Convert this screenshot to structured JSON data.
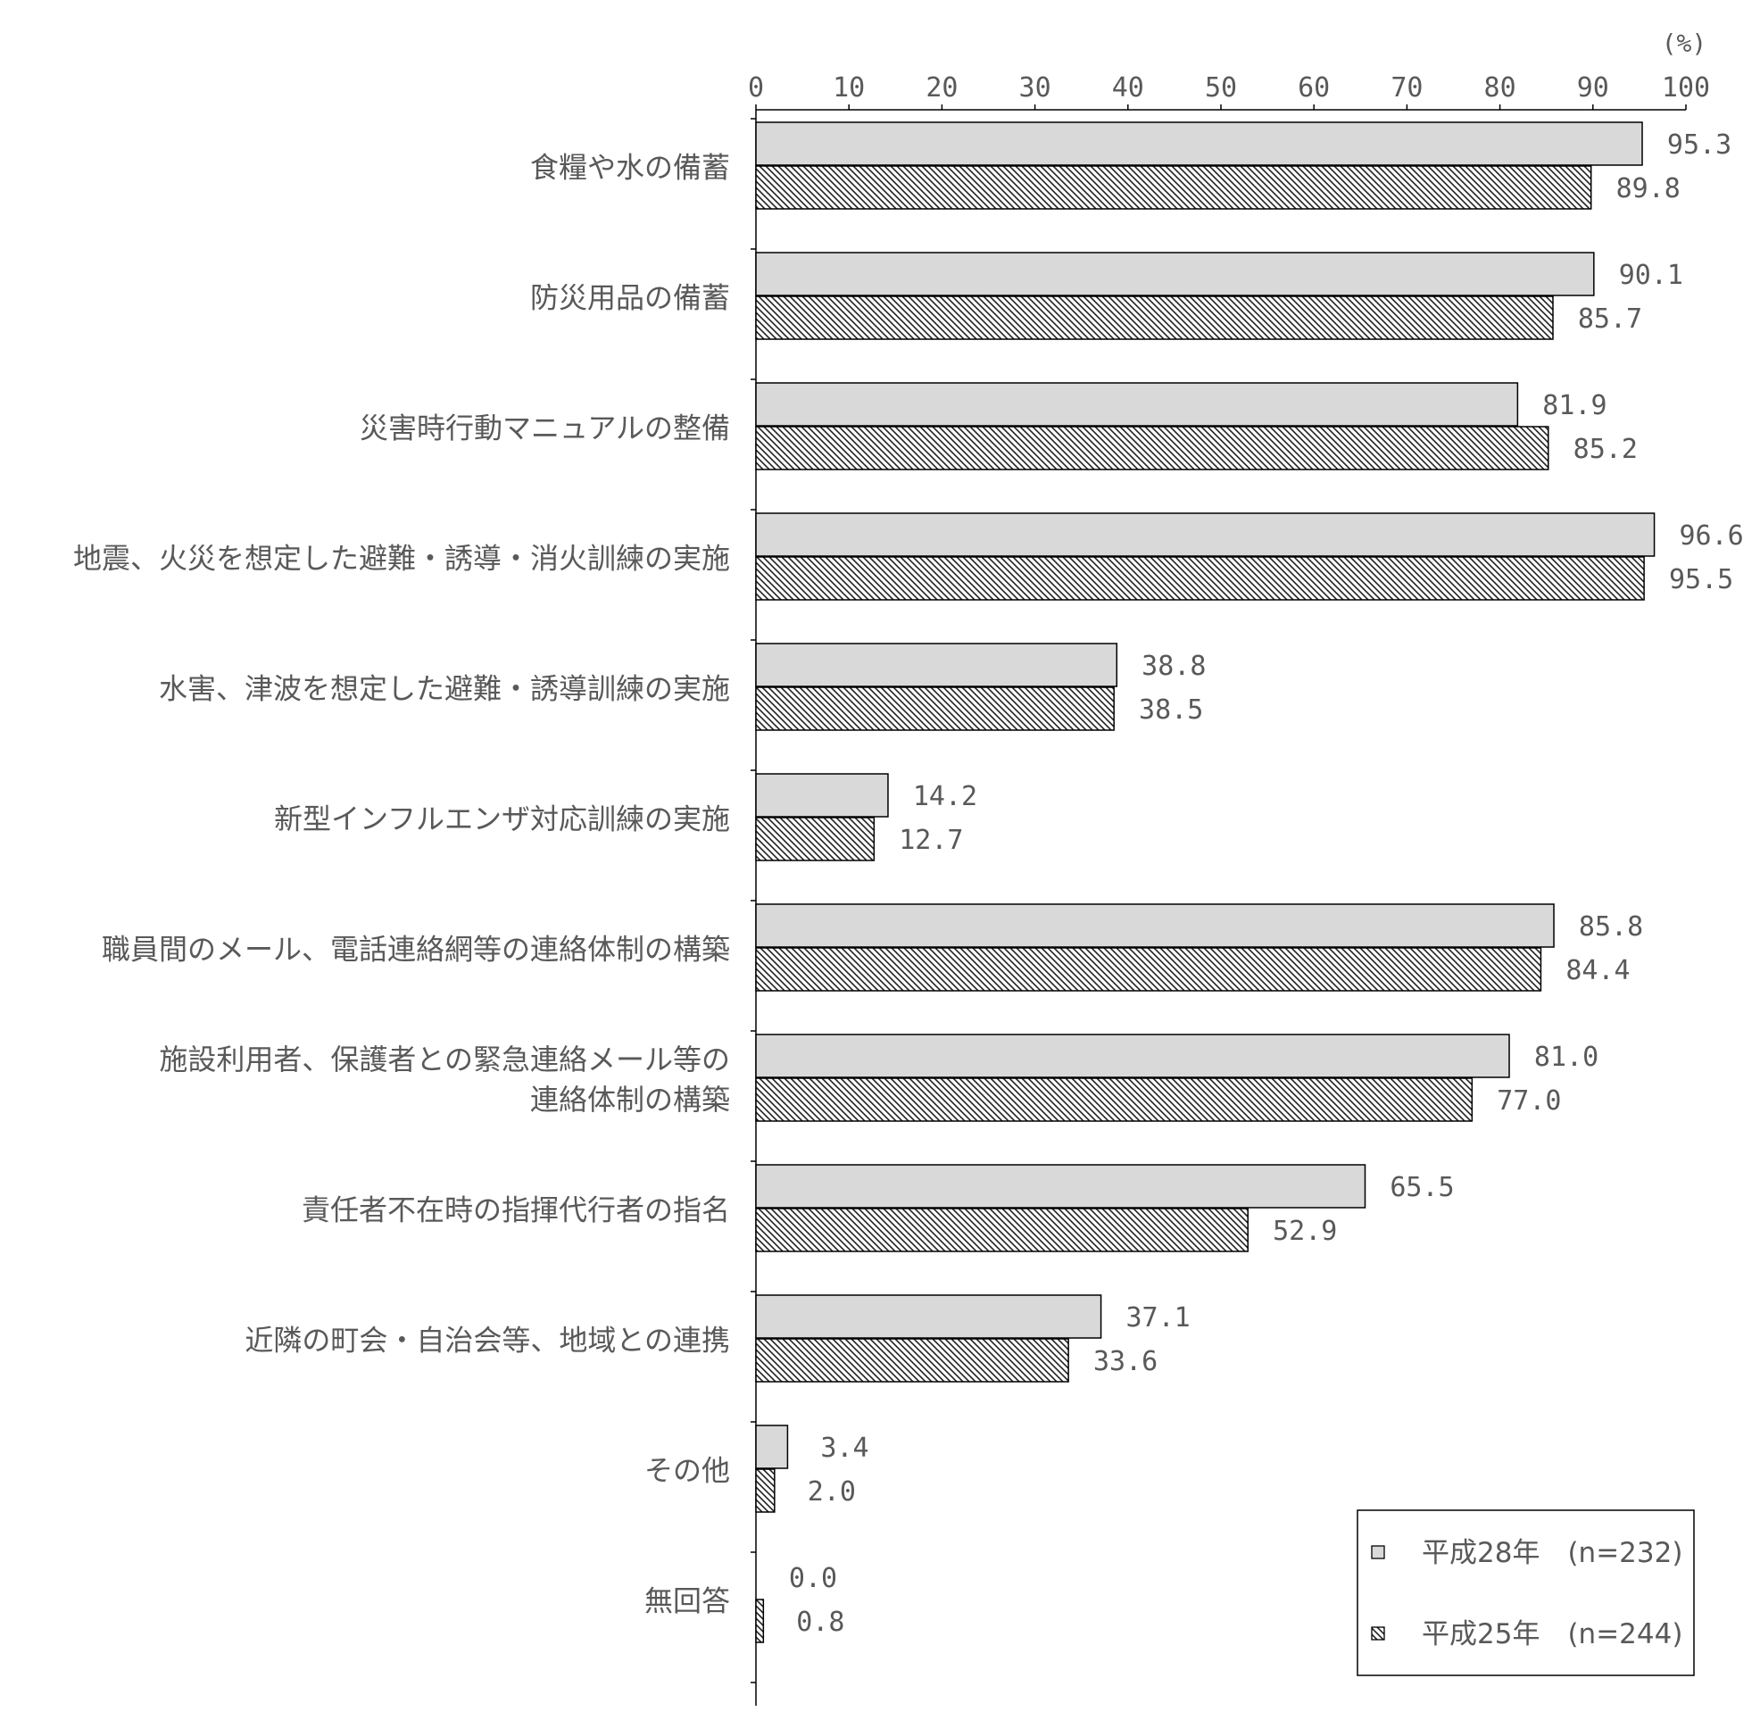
{
  "chart_data": {
    "type": "bar",
    "orientation": "horizontal",
    "unit": "(%)",
    "xlim": [
      0,
      100
    ],
    "xticks": [
      0,
      10,
      20,
      30,
      40,
      50,
      60,
      70,
      80,
      90,
      100
    ],
    "legend_position": "bottom-right",
    "categories": [
      [
        "食糧や水の備蓄"
      ],
      [
        "防災用品の備蓄"
      ],
      [
        "災害時行動マニュアルの整備"
      ],
      [
        "地震、火災を想定した避難・誘導・消火訓練の実施"
      ],
      [
        "水害、津波を想定した避難・誘導訓練の実施"
      ],
      [
        "新型インフルエンザ対応訓練の実施"
      ],
      [
        "職員間のメール、電話連絡網等の連絡体制の構築"
      ],
      [
        "施設利用者、保護者との緊急連絡メール等の",
        "連絡体制の構築"
      ],
      [
        "責任者不在時の指揮代行者の指名"
      ],
      [
        "近隣の町会・自治会等、地域との連携"
      ],
      [
        "その他"
      ],
      [
        "無回答"
      ]
    ],
    "series": [
      {
        "name": "平成28年　(n=232)",
        "fill": "solid",
        "color": "#d9d9d9",
        "values": [
          95.3,
          90.1,
          81.9,
          96.6,
          38.8,
          14.2,
          85.8,
          81.0,
          65.5,
          37.1,
          3.4,
          0.0
        ]
      },
      {
        "name": "平成25年　(n=244)",
        "fill": "hatch",
        "color": "#ffffff",
        "values": [
          89.8,
          85.7,
          85.2,
          95.5,
          38.5,
          12.7,
          84.4,
          77.0,
          52.9,
          33.6,
          2.0,
          0.8
        ]
      }
    ]
  }
}
